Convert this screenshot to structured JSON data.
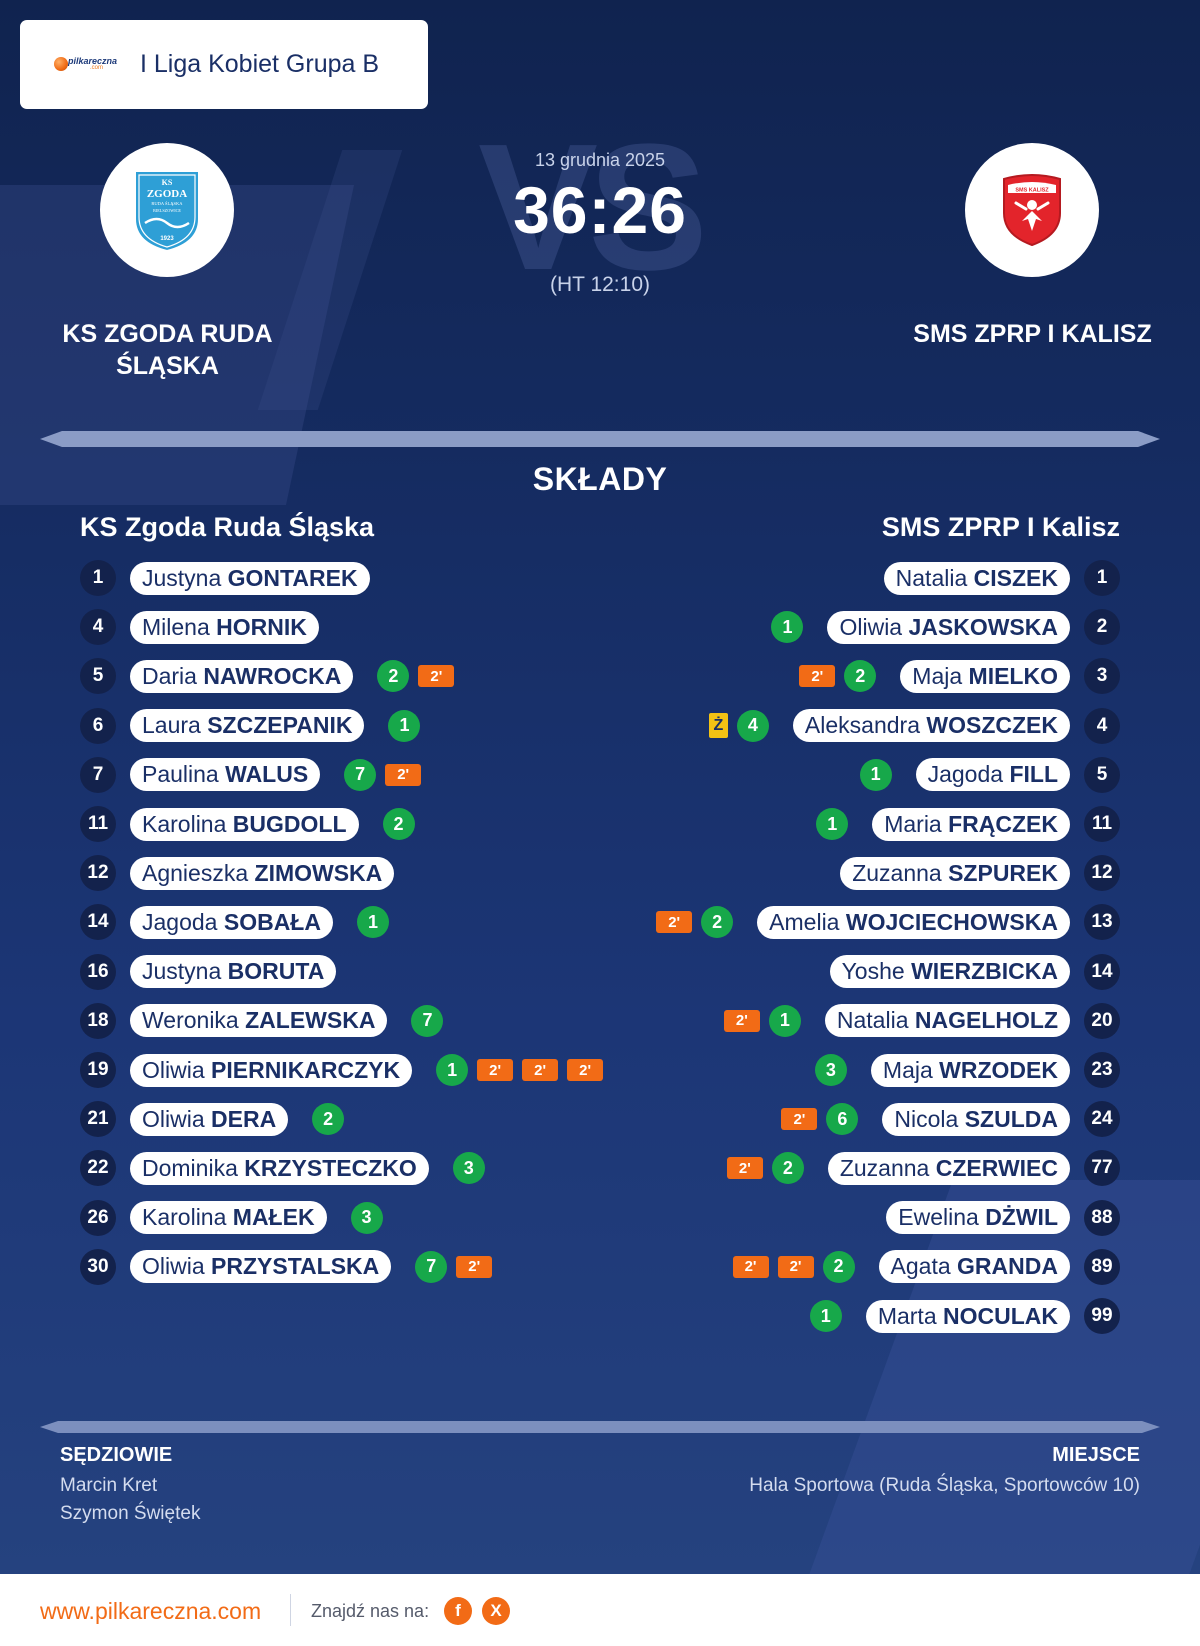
{
  "header": {
    "brand_word": "pilkareczna",
    "brand_suffix": ".com",
    "league": "I Liga Kobiet Grupa B"
  },
  "match": {
    "date": "13 grudnia 2025",
    "score": "36:26",
    "halftime": "(HT 12:10)",
    "watermark": "VS",
    "home_team": "KS ZGODA RUDA ŚLĄSKA",
    "away_team": "SMS ZPRP I KALISZ",
    "home_logo_text": [
      "KS",
      "ZGODA",
      "RUDA ŚLĄSKA",
      "BIELSZOWICE",
      "1923"
    ],
    "away_logo_text": "SMS KALISZ"
  },
  "lineups": {
    "title": "SKŁADY",
    "home_team": "KS Zgoda Ruda Śląska",
    "away_team": "SMS ZPRP I Kalisz",
    "home": [
      {
        "number": "1",
        "first": "Justyna",
        "last": "GONTAREK",
        "events": []
      },
      {
        "number": "4",
        "first": "Milena",
        "last": "HORNIK",
        "events": []
      },
      {
        "number": "5",
        "first": "Daria",
        "last": "NAWROCKA",
        "events": [
          "2",
          "2'"
        ]
      },
      {
        "number": "6",
        "first": "Laura",
        "last": "SZCZEPANIK",
        "events": [
          "1"
        ]
      },
      {
        "number": "7",
        "first": "Paulina",
        "last": "WALUS",
        "events": [
          "7",
          "2'"
        ]
      },
      {
        "number": "11",
        "first": "Karolina",
        "last": "BUGDOLL",
        "events": [
          "2"
        ]
      },
      {
        "number": "12",
        "first": "Agnieszka",
        "last": "ZIMOWSKA",
        "events": []
      },
      {
        "number": "14",
        "first": "Jagoda",
        "last": "SOBAŁA",
        "events": [
          "1"
        ]
      },
      {
        "number": "16",
        "first": "Justyna",
        "last": "BORUTA",
        "events": []
      },
      {
        "number": "18",
        "first": "Weronika",
        "last": "ZALEWSKA",
        "events": [
          "7"
        ]
      },
      {
        "number": "19",
        "first": "Oliwia",
        "last": "PIERNIKARCZYK",
        "events": [
          "1",
          "2'",
          "2'",
          "2'"
        ]
      },
      {
        "number": "21",
        "first": "Oliwia",
        "last": "DERA",
        "events": [
          "2"
        ]
      },
      {
        "number": "22",
        "first": "Dominika",
        "last": "KRZYSTECZKO",
        "events": [
          "3"
        ]
      },
      {
        "number": "26",
        "first": "Karolina",
        "last": "MAŁEK",
        "events": [
          "3"
        ]
      },
      {
        "number": "30",
        "first": "Oliwia",
        "last": "PRZYSTALSKA",
        "events": [
          "7",
          "2'"
        ]
      }
    ],
    "away": [
      {
        "number": "1",
        "first": "Natalia",
        "last": "CISZEK",
        "events": []
      },
      {
        "number": "2",
        "first": "Oliwia",
        "last": "JASKOWSKA",
        "events": [
          "1"
        ]
      },
      {
        "number": "3",
        "first": "Maja",
        "last": "MIELKO",
        "events": [
          "2",
          "2'"
        ]
      },
      {
        "number": "4",
        "first": "Aleksandra",
        "last": "WOSZCZEK",
        "events": [
          "4",
          "Ż"
        ]
      },
      {
        "number": "5",
        "first": "Jagoda",
        "last": "FILL",
        "events": [
          "1"
        ]
      },
      {
        "number": "11",
        "first": "Maria",
        "last": "FRĄCZEK",
        "events": [
          "1"
        ]
      },
      {
        "number": "12",
        "first": "Zuzanna",
        "last": "SZPUREK",
        "events": []
      },
      {
        "number": "13",
        "first": "Amelia",
        "last": "WOJCIECHOWSKA",
        "events": [
          "2",
          "2'"
        ]
      },
      {
        "number": "14",
        "first": "Yoshe",
        "last": "WIERZBICKA",
        "events": []
      },
      {
        "number": "20",
        "first": "Natalia",
        "last": "NAGELHOLZ",
        "events": [
          "1",
          "2'"
        ]
      },
      {
        "number": "23",
        "first": "Maja",
        "last": "WRZODEK",
        "events": [
          "3"
        ]
      },
      {
        "number": "24",
        "first": "Nicola",
        "last": "SZULDA",
        "events": [
          "6",
          "2'"
        ]
      },
      {
        "number": "77",
        "first": "Zuzanna",
        "last": "CZERWIEC",
        "events": [
          "2",
          "2'"
        ]
      },
      {
        "number": "88",
        "first": "Ewelina",
        "last": "DŻWIL",
        "events": []
      },
      {
        "number": "89",
        "first": "Agata",
        "last": "GRANDA",
        "events": [
          "2",
          "2'",
          "2'"
        ]
      },
      {
        "number": "99",
        "first": "Marta",
        "last": "NOCULAK",
        "events": [
          "1"
        ]
      }
    ]
  },
  "info": {
    "referees_heading": "SĘDZIOWIE",
    "referees": [
      "Marcin Kret",
      "Szymon Świętek"
    ],
    "venue_heading": "MIEJSCE",
    "venue": "Hala Sportowa (Ruda Śląska, Sportowców 10)"
  },
  "footer": {
    "url": "www.pilkareczna.com",
    "find_us": "Znajdź nas na:",
    "facebook": "f",
    "x": "X"
  },
  "colors": {
    "background": "#162d64",
    "goal": "#17a84a",
    "penalty": "#f26b16",
    "yellow_card": "#f3c214",
    "accent": "#f26b16"
  },
  "icons": {
    "goal": "green-circle-with-goal-count",
    "suspension": "orange-2-minute-badge",
    "yellow_card": "yellow-card-icon",
    "facebook": "facebook-icon",
    "x": "x-icon"
  }
}
